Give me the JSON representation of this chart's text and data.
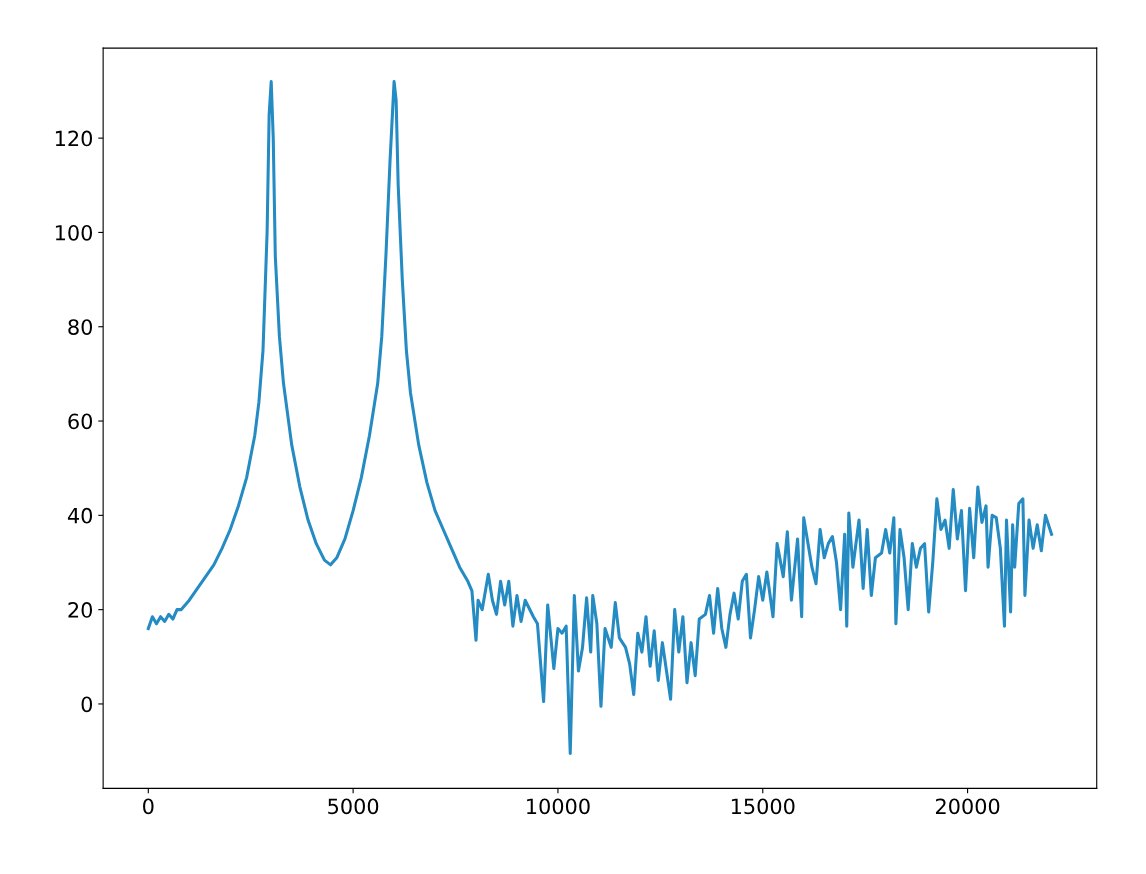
{
  "chart_data": {
    "type": "line",
    "xlim": [
      -1102.5,
      23152.5
    ],
    "ylim": [
      -17.9,
      139.1
    ],
    "xticks": [
      0,
      5000,
      10000,
      15000,
      20000
    ],
    "yticks": [
      0,
      20,
      40,
      60,
      80,
      100,
      120
    ],
    "grid": false,
    "legend": false,
    "series": [
      {
        "color": "#258bc3",
        "x": [
          0,
          100,
          200,
          300,
          400,
          500,
          600,
          700,
          800,
          1000,
          1200,
          1400,
          1600,
          1800,
          2000,
          2200,
          2400,
          2600,
          2700,
          2800,
          2900,
          2950,
          3000,
          3050,
          3100,
          3200,
          3300,
          3500,
          3700,
          3900,
          4100,
          4300,
          4450,
          4600,
          4800,
          5000,
          5200,
          5400,
          5600,
          5700,
          5800,
          5900,
          6000,
          6050,
          6100,
          6200,
          6300,
          6400,
          6600,
          6800,
          7000,
          7200,
          7400,
          7600,
          7800,
          7900,
          8000,
          8050,
          8150,
          8300,
          8400,
          8500,
          8600,
          8700,
          8800,
          8900,
          9000,
          9100,
          9200,
          9400,
          9500,
          9650,
          9750,
          9900,
          10000,
          10100,
          10200,
          10300,
          10400,
          10500,
          10600,
          10700,
          10800,
          10850,
          10950,
          11050,
          11150,
          11300,
          11400,
          11500,
          11650,
          11750,
          11850,
          11950,
          12050,
          12150,
          12250,
          12350,
          12450,
          12550,
          12650,
          12750,
          12850,
          12950,
          13050,
          13150,
          13250,
          13350,
          13450,
          13600,
          13700,
          13800,
          13900,
          14000,
          14100,
          14200,
          14300,
          14400,
          14500,
          14600,
          14700,
          14800,
          14900,
          15000,
          15100,
          15250,
          15350,
          15500,
          15600,
          15700,
          15850,
          15950,
          16000,
          16200,
          16300,
          16400,
          16500,
          16600,
          16700,
          16800,
          16900,
          17000,
          17050,
          17100,
          17200,
          17350,
          17450,
          17550,
          17650,
          17750,
          17900,
          18000,
          18100,
          18200,
          18250,
          18350,
          18450,
          18550,
          18650,
          18750,
          18850,
          18950,
          19050,
          19150,
          19250,
          19350,
          19450,
          19550,
          19650,
          19750,
          19850,
          19950,
          20050,
          20150,
          20250,
          20350,
          20450,
          20500,
          20600,
          20700,
          20800,
          20900,
          20950,
          21050,
          21100,
          21150,
          21250,
          21350,
          21400,
          21500,
          21600,
          21700,
          21800,
          21900,
          22050
        ],
        "values": [
          16,
          18.5,
          17,
          18.5,
          17.5,
          19,
          18,
          20,
          20,
          22,
          24.5,
          27,
          29.5,
          33,
          37,
          42,
          48,
          57,
          64,
          75,
          100,
          125,
          132,
          120,
          95,
          78,
          68,
          55,
          46,
          39,
          34,
          30.5,
          29.5,
          31,
          35,
          41,
          48,
          57,
          68,
          78,
          95,
          115,
          132,
          128,
          110,
          90,
          75,
          66,
          55,
          47,
          41,
          37,
          33,
          29,
          26,
          24,
          13.5,
          22,
          20,
          27.5,
          22,
          19,
          26,
          21,
          26,
          16.5,
          23,
          17.5,
          22,
          18.5,
          17,
          0.5,
          21,
          7.5,
          16,
          15,
          16.5,
          -10.5,
          23,
          7,
          12,
          22.5,
          11,
          23,
          17,
          -0.5,
          16,
          12,
          21.5,
          14,
          12,
          8.5,
          2,
          15,
          11,
          18.5,
          8,
          15.5,
          5,
          13,
          7,
          1,
          20,
          11,
          18.5,
          4.5,
          13,
          6,
          18,
          19,
          23,
          15,
          24.5,
          16,
          12,
          19,
          23.5,
          18,
          26,
          27.5,
          14,
          20,
          27,
          22,
          28,
          18.5,
          34,
          27,
          36.5,
          22,
          35,
          18.5,
          39.5,
          29,
          25.5,
          37,
          31,
          34,
          35.5,
          30,
          20,
          36,
          16.5,
          40.5,
          29,
          39,
          24.5,
          37,
          23,
          31,
          32,
          37,
          32,
          39.5,
          17,
          37,
          31,
          20,
          34,
          29,
          33,
          34,
          19.5,
          30,
          43.5,
          37,
          39,
          33,
          45.5,
          35,
          41,
          24,
          41.5,
          31,
          46,
          38.5,
          42,
          29,
          40,
          39.5,
          33,
          16.5,
          39,
          19.5,
          38,
          29,
          42.5,
          43.5,
          23,
          39,
          33,
          38,
          32.5,
          40,
          36
        ]
      }
    ]
  }
}
